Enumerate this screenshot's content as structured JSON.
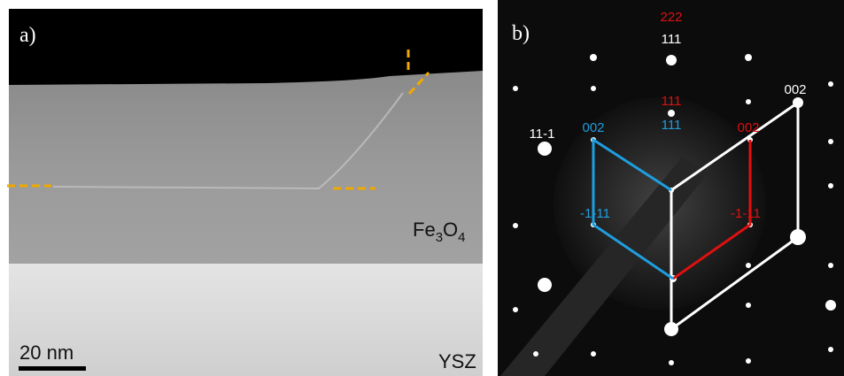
{
  "panel_a": {
    "label": "a)",
    "film": [
      "Fe",
      "3",
      "O",
      "4"
    ],
    "substrate": "YSZ",
    "scale_bar": "20 nm"
  },
  "panel_b": {
    "label": "b)",
    "indices": {
      "top_red": "222",
      "top_white": "111",
      "mid_red": "111",
      "mid_blue": "111",
      "right_white": "002",
      "left_white": "11-1",
      "blue_002": "002",
      "red_002": "002",
      "blue_m": "-1-11",
      "red_m": "-1-11"
    }
  }
}
